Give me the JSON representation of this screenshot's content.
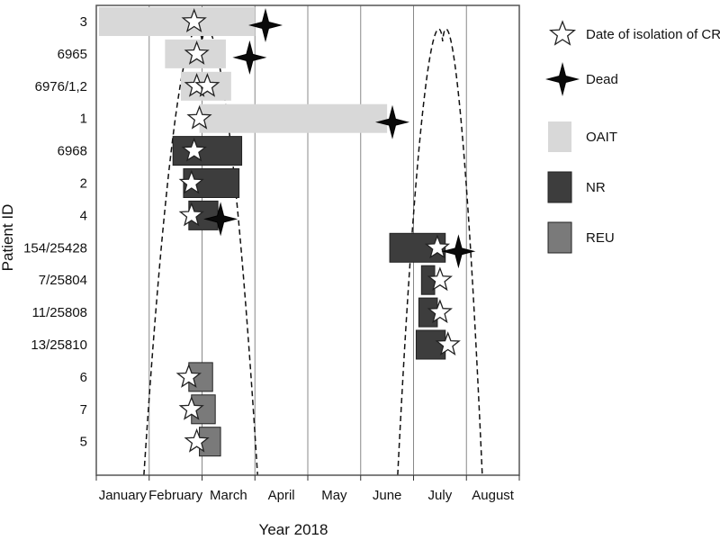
{
  "chart_data": {
    "type": "gantt",
    "title": "",
    "xlabel": "Year 2018",
    "ylabel": "Patient ID",
    "x_ticks": [
      "January",
      "February",
      "March",
      "April",
      "May",
      "June",
      "July",
      "August"
    ],
    "xlim": [
      0,
      8
    ],
    "y_categories": [
      "3",
      "6965",
      "6976/1,2",
      "1",
      "6968",
      "2",
      "4",
      "154/25428",
      "7/25804",
      "11/25808",
      "13/25810",
      "6",
      "7",
      "5"
    ],
    "grid": "vertical",
    "legend_position": "right",
    "legend": [
      {
        "label": "Date of isolation of CRKP",
        "marker": "star-outline"
      },
      {
        "label": "Dead",
        "marker": "star-filled"
      },
      {
        "label": "OAIT",
        "swatch": "OAIT"
      },
      {
        "label": "NR",
        "swatch": "NR"
      },
      {
        "label": "REU",
        "swatch": "REU"
      }
    ],
    "colors": {
      "OAIT": "#d8d8d8",
      "NR": "#3d3d3d",
      "REU": "#7a7a7a",
      "dead": "#0a0a0a",
      "grid": "#888888"
    },
    "stays": [
      {
        "patient": "3",
        "ward": "OAIT",
        "start": 0.05,
        "end": 3.0
      },
      {
        "patient": "6965",
        "ward": "OAIT",
        "start": 1.3,
        "end": 2.45
      },
      {
        "patient": "6976/1,2",
        "ward": "OAIT",
        "start": 1.6,
        "end": 2.55
      },
      {
        "patient": "1",
        "ward": "OAIT",
        "start": 1.95,
        "end": 5.5
      },
      {
        "patient": "6968",
        "ward": "NR",
        "start": 1.45,
        "end": 2.75
      },
      {
        "patient": "2",
        "ward": "NR",
        "start": 1.65,
        "end": 2.7
      },
      {
        "patient": "4",
        "ward": "NR",
        "start": 1.75,
        "end": 2.3
      },
      {
        "patient": "154/25428",
        "ward": "NR",
        "start": 5.55,
        "end": 6.6
      },
      {
        "patient": "7/25804",
        "ward": "NR",
        "start": 6.15,
        "end": 6.4
      },
      {
        "patient": "11/25808",
        "ward": "NR",
        "start": 6.1,
        "end": 6.45
      },
      {
        "patient": "13/25810",
        "ward": "NR",
        "start": 6.05,
        "end": 6.6
      },
      {
        "patient": "6",
        "ward": "REU",
        "start": 1.75,
        "end": 2.2
      },
      {
        "patient": "7",
        "ward": "REU",
        "start": 1.8,
        "end": 2.25
      },
      {
        "patient": "5",
        "ward": "REU",
        "start": 1.95,
        "end": 2.35
      }
    ],
    "isolations": [
      {
        "patient": "3",
        "date": 1.85
      },
      {
        "patient": "6965",
        "date": 1.9
      },
      {
        "patient": "6976/1,2",
        "date": 1.9
      },
      {
        "patient": "6976/1,2",
        "date": 2.1
      },
      {
        "patient": "1",
        "date": 1.95
      },
      {
        "patient": "6968",
        "date": 1.85
      },
      {
        "patient": "2",
        "date": 1.8
      },
      {
        "patient": "4",
        "date": 1.8
      },
      {
        "patient": "154/25428",
        "date": 6.45
      },
      {
        "patient": "7/25804",
        "date": 6.5
      },
      {
        "patient": "11/25808",
        "date": 6.5
      },
      {
        "patient": "13/25810",
        "date": 6.65
      },
      {
        "patient": "6",
        "date": 1.75
      },
      {
        "patient": "7",
        "date": 1.8
      },
      {
        "patient": "5",
        "date": 1.9
      }
    ],
    "deaths": [
      {
        "patient": "3",
        "date": 3.2
      },
      {
        "patient": "6965",
        "date": 2.9
      },
      {
        "patient": "1",
        "date": 5.6
      },
      {
        "patient": "4",
        "date": 2.35
      },
      {
        "patient": "154/25428",
        "date": 6.85
      }
    ],
    "epidemic_curves": [
      {
        "start": 0.9,
        "peak": 2.0,
        "end": 3.05
      },
      {
        "start": 5.7,
        "peak": 6.55,
        "end": 7.3
      }
    ]
  }
}
